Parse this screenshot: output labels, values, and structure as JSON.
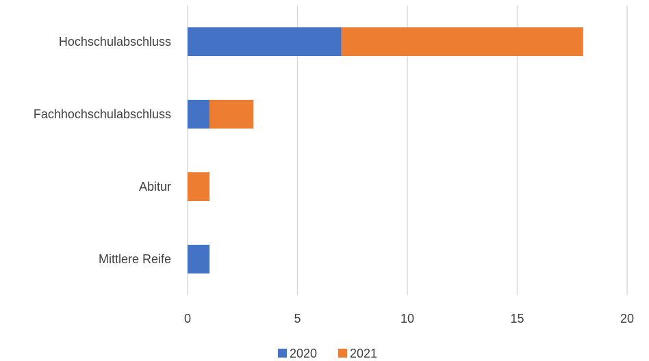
{
  "chart_data": {
    "type": "bar",
    "orientation": "horizontal",
    "stacked": true,
    "categories": [
      "Hochschulabschluss",
      "Fachhochschulabschluss",
      "Abitur",
      "Mittlere Reife"
    ],
    "series": [
      {
        "name": "2020",
        "values": [
          7,
          1,
          0,
          1
        ],
        "color": "#4472C4"
      },
      {
        "name": "2021",
        "values": [
          11,
          2,
          1,
          0
        ],
        "color": "#ED7D31"
      }
    ],
    "xlim": [
      0,
      20
    ],
    "xticks": [
      0,
      5,
      10,
      15,
      20
    ],
    "grid": true,
    "legend_position": "bottom",
    "title": "",
    "xlabel": "",
    "ylabel": ""
  }
}
